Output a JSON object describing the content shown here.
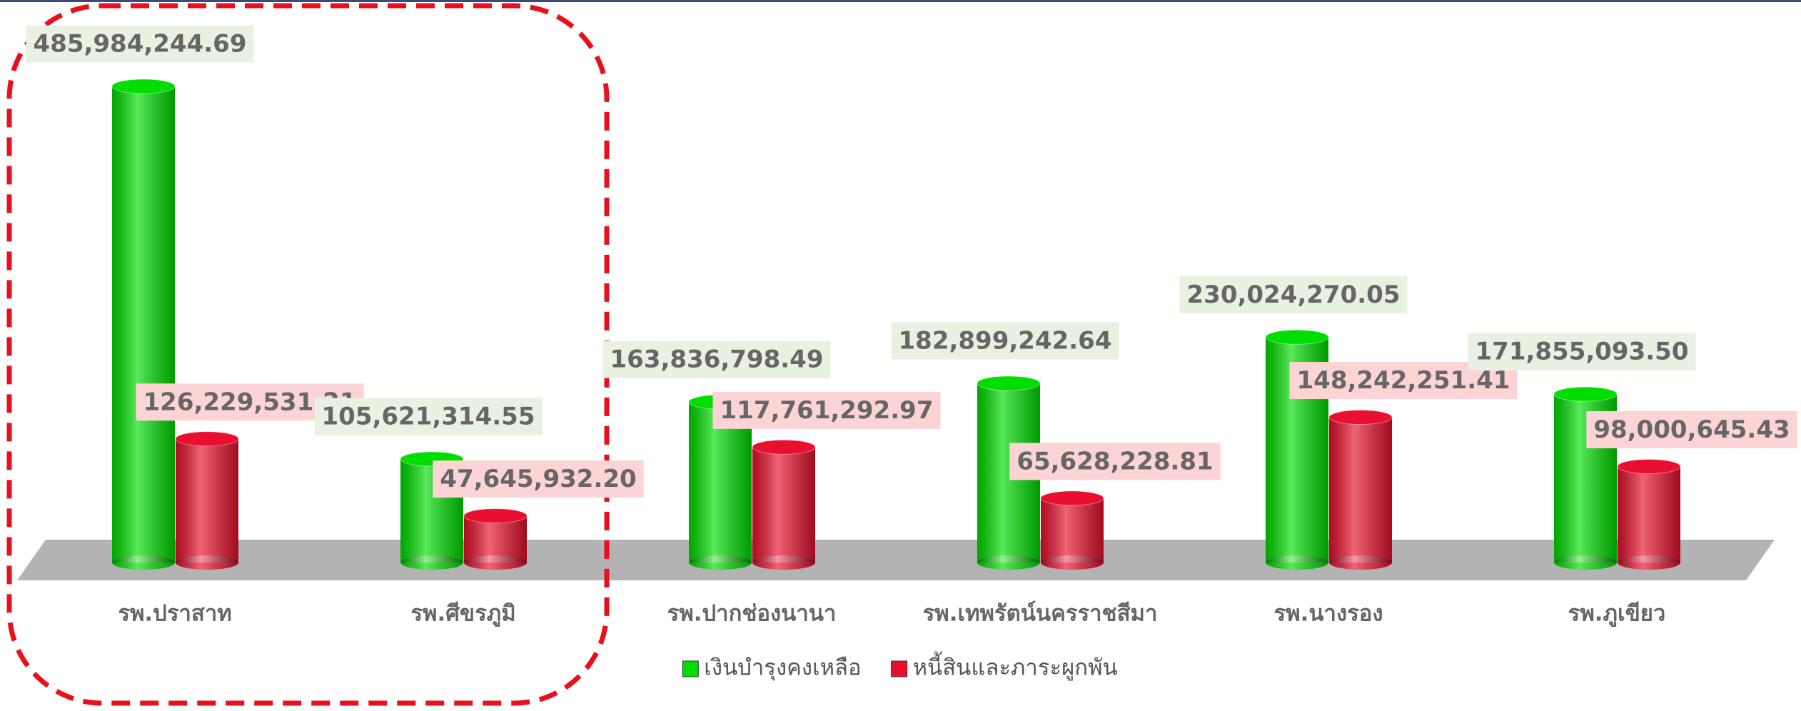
{
  "chart_data": {
    "type": "bar3d",
    "categories": [
      "รพ.ปราสาท",
      "รพ.ศีขรภูมิ",
      "รพ.ปากช่องนานา",
      "รพ.เทพรัตน์นครราชสีมา",
      "รพ.นางรอง",
      "รพ.ภูเขียว"
    ],
    "series": [
      {
        "name": "เงินบำรุงคงเหลือ",
        "color": "#00dd00",
        "values": [
          485984244.69,
          105621314.55,
          163836798.49,
          182899242.64,
          230024270.05,
          171855093.5
        ],
        "value_labels": [
          "485,984,244.69",
          "105,621,314.55",
          "163,836,798.49",
          "182,899,242.64",
          "230,024,270.05",
          "171,855,093.50"
        ]
      },
      {
        "name": "หนี้สินและภาระผูกพัน",
        "color": "#e8102e",
        "values": [
          126229531.21,
          47645932.2,
          117761292.97,
          65628228.81,
          148242251.41,
          98000645.43
        ],
        "value_labels": [
          "126,229,531.21",
          "47,645,932.20",
          "117,761,292.97",
          "65,628,228.81",
          "148,242,251.41",
          "98,000,645.43"
        ]
      }
    ],
    "legend": "bottom"
  }
}
